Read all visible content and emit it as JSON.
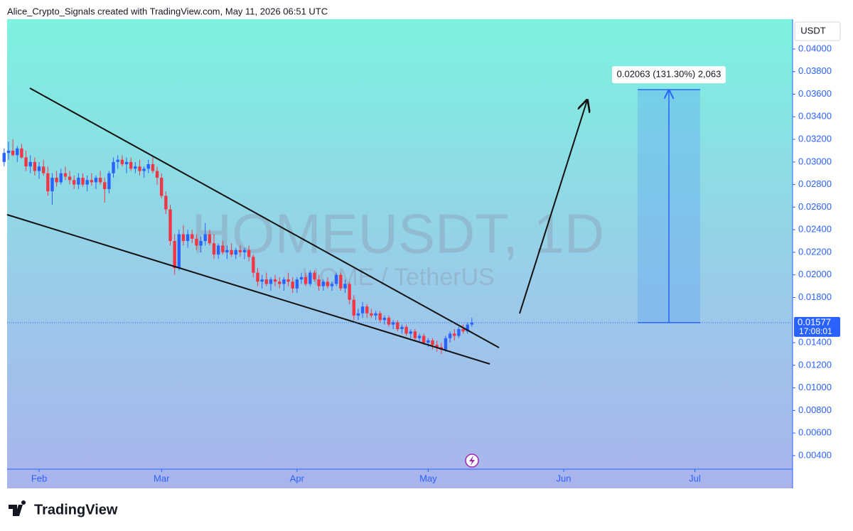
{
  "chart_data": {
    "type": "candlestick",
    "credit": "Alice_Crypto_Signals created with TradingView.com, May 11, 2026 06:51 UTC",
    "watermark": "HOMEUSDT, 1D",
    "watermark_subtitle": "HOME / TetherUS",
    "currency": "USDT",
    "brand": "TradingView",
    "countdown": "17:08:01",
    "up_color": "#2962ff",
    "down_color": "#f23645",
    "measure": {
      "change": 0.02063,
      "label": "0.02063 (131.30%) 2,063"
    },
    "xlim": [
      0.68,
      180.36
    ],
    "xticks": [
      {
        "value": 8,
        "label": "Feb"
      },
      {
        "value": 36,
        "label": "Mar"
      },
      {
        "value": 67,
        "label": "Apr"
      },
      {
        "value": 97,
        "label": "May"
      },
      {
        "value": 128,
        "label": "Jun"
      },
      {
        "value": 158,
        "label": "Jul"
      }
    ],
    "ylim": [
      0.0028,
      0.04264
    ],
    "yticks": [
      {
        "value": 0.04,
        "label": "0.04000"
      },
      {
        "value": 0.038,
        "label": "0.03800"
      },
      {
        "value": 0.036,
        "label": "0.03600"
      },
      {
        "value": 0.034,
        "label": "0.03400"
      },
      {
        "value": 0.032,
        "label": "0.03200"
      },
      {
        "value": 0.03,
        "label": "0.03000"
      },
      {
        "value": 0.028,
        "label": "0.02800"
      },
      {
        "value": 0.026,
        "label": "0.02600"
      },
      {
        "value": 0.024,
        "label": "0.02400"
      },
      {
        "value": 0.022,
        "label": "0.02200"
      },
      {
        "value": 0.02,
        "label": "0.02000"
      },
      {
        "value": 0.018,
        "label": "0.01800"
      },
      {
        "value": 0.014,
        "label": "0.01400"
      },
      {
        "value": 0.012,
        "label": "0.01200"
      },
      {
        "value": 0.01,
        "label": "0.01000"
      },
      {
        "value": 0.008,
        "label": "0.00800"
      },
      {
        "value": 0.006,
        "label": "0.00600"
      },
      {
        "value": 0.004,
        "label": "0.00400"
      }
    ],
    "candles": [
      [
        0.03,
        0.0312,
        0.0296,
        0.0308
      ],
      [
        0.0308,
        0.0318,
        0.0302,
        0.031
      ],
      [
        0.031,
        0.032,
        0.0305,
        0.0306
      ],
      [
        0.0306,
        0.0314,
        0.03,
        0.0312
      ],
      [
        0.0312,
        0.0316,
        0.0303,
        0.0304
      ],
      [
        0.0304,
        0.031,
        0.0292,
        0.0296
      ],
      [
        0.0296,
        0.0306,
        0.029,
        0.03
      ],
      [
        0.03,
        0.0304,
        0.0288,
        0.0292
      ],
      [
        0.0292,
        0.03,
        0.0285,
        0.0296
      ],
      [
        0.0296,
        0.0302,
        0.0288,
        0.029
      ],
      [
        0.029,
        0.0296,
        0.027,
        0.0274
      ],
      [
        0.0274,
        0.029,
        0.0262,
        0.0286
      ],
      [
        0.0286,
        0.0292,
        0.0278,
        0.0282
      ],
      [
        0.0282,
        0.0294,
        0.028,
        0.029
      ],
      [
        0.029,
        0.0296,
        0.0284,
        0.0287
      ],
      [
        0.0287,
        0.0292,
        0.028,
        0.0284
      ],
      [
        0.0284,
        0.0288,
        0.0276,
        0.028
      ],
      [
        0.028,
        0.029,
        0.0276,
        0.0286
      ],
      [
        0.0286,
        0.029,
        0.0278,
        0.028
      ],
      [
        0.028,
        0.0288,
        0.0274,
        0.0284
      ],
      [
        0.0284,
        0.029,
        0.0279,
        0.0282
      ],
      [
        0.0282,
        0.0288,
        0.0276,
        0.0286
      ],
      [
        0.0286,
        0.0292,
        0.028,
        0.0282
      ],
      [
        0.0282,
        0.0286,
        0.0264,
        0.0276
      ],
      [
        0.0276,
        0.0292,
        0.0272,
        0.029
      ],
      [
        0.029,
        0.0304,
        0.0286,
        0.03
      ],
      [
        0.03,
        0.0306,
        0.0294,
        0.0302
      ],
      [
        0.0302,
        0.0306,
        0.0296,
        0.0298
      ],
      [
        0.0298,
        0.0304,
        0.029,
        0.03
      ],
      [
        0.03,
        0.0304,
        0.0292,
        0.0294
      ],
      [
        0.0294,
        0.03,
        0.029,
        0.0296
      ],
      [
        0.0296,
        0.0302,
        0.0288,
        0.0292
      ],
      [
        0.0292,
        0.0296,
        0.0286,
        0.0294
      ],
      [
        0.0294,
        0.0302,
        0.029,
        0.0298
      ],
      [
        0.0298,
        0.0304,
        0.029,
        0.0292
      ],
      [
        0.0292,
        0.0296,
        0.028,
        0.0286
      ],
      [
        0.0286,
        0.029,
        0.0268,
        0.027
      ],
      [
        0.027,
        0.0274,
        0.0254,
        0.0258
      ],
      [
        0.0258,
        0.0262,
        0.0226,
        0.023
      ],
      [
        0.023,
        0.0236,
        0.02,
        0.0206
      ],
      [
        0.0206,
        0.024,
        0.0204,
        0.0236
      ],
      [
        0.0236,
        0.0244,
        0.0226,
        0.023
      ],
      [
        0.023,
        0.024,
        0.0224,
        0.0236
      ],
      [
        0.0236,
        0.024,
        0.0228,
        0.0232
      ],
      [
        0.0232,
        0.0236,
        0.0222,
        0.0226
      ],
      [
        0.0226,
        0.0234,
        0.022,
        0.023
      ],
      [
        0.023,
        0.0246,
        0.0226,
        0.0236
      ],
      [
        0.0236,
        0.024,
        0.0226,
        0.0228
      ],
      [
        0.0228,
        0.0236,
        0.0214,
        0.0218
      ],
      [
        0.0218,
        0.0228,
        0.0214,
        0.0226
      ],
      [
        0.0226,
        0.023,
        0.0218,
        0.022
      ],
      [
        0.022,
        0.0226,
        0.0214,
        0.0222
      ],
      [
        0.0222,
        0.0228,
        0.0216,
        0.0218
      ],
      [
        0.0218,
        0.0224,
        0.0214,
        0.0222
      ],
      [
        0.0222,
        0.0226,
        0.0216,
        0.022
      ],
      [
        0.022,
        0.0224,
        0.0214,
        0.0222
      ],
      [
        0.0222,
        0.0226,
        0.0212,
        0.0216
      ],
      [
        0.0216,
        0.0218,
        0.0198,
        0.0202
      ],
      [
        0.0202,
        0.0206,
        0.019,
        0.0194
      ],
      [
        0.0194,
        0.02,
        0.0188,
        0.0196
      ],
      [
        0.0196,
        0.0202,
        0.019,
        0.0192
      ],
      [
        0.0192,
        0.0198,
        0.0186,
        0.0196
      ],
      [
        0.0196,
        0.02,
        0.019,
        0.0194
      ],
      [
        0.0194,
        0.0198,
        0.0188,
        0.0192
      ],
      [
        0.0192,
        0.0198,
        0.0186,
        0.0196
      ],
      [
        0.0196,
        0.0202,
        0.019,
        0.0194
      ],
      [
        0.0194,
        0.0198,
        0.0184,
        0.0188
      ],
      [
        0.0188,
        0.0198,
        0.0184,
        0.0196
      ],
      [
        0.0196,
        0.0202,
        0.0192,
        0.0198
      ],
      [
        0.0198,
        0.0202,
        0.019,
        0.0192
      ],
      [
        0.0192,
        0.0204,
        0.019,
        0.0202
      ],
      [
        0.0202,
        0.0204,
        0.0194,
        0.0196
      ],
      [
        0.0196,
        0.02,
        0.0186,
        0.019
      ],
      [
        0.019,
        0.0196,
        0.0186,
        0.0194
      ],
      [
        0.0194,
        0.0198,
        0.0188,
        0.019
      ],
      [
        0.019,
        0.0194,
        0.0186,
        0.0192
      ],
      [
        0.0192,
        0.0202,
        0.019,
        0.02
      ],
      [
        0.02,
        0.0202,
        0.0186,
        0.0188
      ],
      [
        0.0188,
        0.0196,
        0.0184,
        0.0192
      ],
      [
        0.0192,
        0.0194,
        0.0174,
        0.0178
      ],
      [
        0.0178,
        0.0182,
        0.016,
        0.0164
      ],
      [
        0.0164,
        0.017,
        0.016,
        0.0166
      ],
      [
        0.0166,
        0.0176,
        0.0162,
        0.0172
      ],
      [
        0.0172,
        0.0174,
        0.0162,
        0.0166
      ],
      [
        0.0166,
        0.017,
        0.0162,
        0.0164
      ],
      [
        0.0164,
        0.0168,
        0.016,
        0.0166
      ],
      [
        0.0166,
        0.0168,
        0.0158,
        0.016
      ],
      [
        0.016,
        0.0164,
        0.0156,
        0.0162
      ],
      [
        0.0162,
        0.0164,
        0.0154,
        0.0156
      ],
      [
        0.0156,
        0.016,
        0.0152,
        0.0158
      ],
      [
        0.0158,
        0.016,
        0.015,
        0.0152
      ],
      [
        0.0152,
        0.0156,
        0.0148,
        0.0154
      ],
      [
        0.0154,
        0.0156,
        0.0146,
        0.0148
      ],
      [
        0.0148,
        0.0152,
        0.0144,
        0.015
      ],
      [
        0.015,
        0.0152,
        0.0142,
        0.0144
      ],
      [
        0.0144,
        0.0148,
        0.014,
        0.0146
      ],
      [
        0.0146,
        0.0148,
        0.0138,
        0.014
      ],
      [
        0.014,
        0.0144,
        0.0136,
        0.0142
      ],
      [
        0.0142,
        0.0144,
        0.0134,
        0.0138
      ],
      [
        0.0138,
        0.0142,
        0.0132,
        0.0136
      ],
      [
        0.0136,
        0.014,
        0.013,
        0.0134
      ],
      [
        0.0134,
        0.0146,
        0.0132,
        0.0144
      ],
      [
        0.0144,
        0.015,
        0.014,
        0.0148
      ],
      [
        0.0148,
        0.0152,
        0.0142,
        0.0146
      ],
      [
        0.0146,
        0.0154,
        0.0144,
        0.0152
      ],
      [
        0.0152,
        0.0156,
        0.0148,
        0.015
      ],
      [
        0.015,
        0.0158,
        0.0148,
        0.0156
      ],
      [
        0.0156,
        0.0162,
        0.0154,
        0.01577
      ]
    ]
  }
}
